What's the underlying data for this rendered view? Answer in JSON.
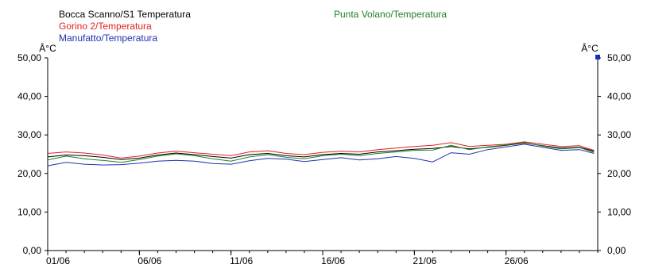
{
  "chart_data": {
    "type": "line",
    "y_unit_left": "Â°C",
    "y_unit_right": "Â°C",
    "ylim": [
      0,
      50
    ],
    "y_ticks": [
      "0,00",
      "10,00",
      "20,00",
      "30,00",
      "40,00",
      "50,00"
    ],
    "y_tick_values": [
      0,
      10,
      20,
      30,
      40,
      50
    ],
    "x_ticks": [
      "01/06",
      "06/06",
      "11/06",
      "16/06",
      "21/06",
      "26/06"
    ],
    "x_tick_days": [
      1,
      6,
      11,
      16,
      21,
      26
    ],
    "xlim_days": [
      1,
      31
    ],
    "grid": false,
    "series": [
      {
        "name": "Bocca Scanno/S1 Temperatura",
        "color": "#000000",
        "x_days": [
          1,
          2,
          3,
          4,
          5,
          6,
          7,
          8,
          9,
          10,
          11,
          12,
          13,
          14,
          15,
          16,
          17,
          18,
          19,
          20,
          21,
          22,
          23,
          24,
          25,
          26,
          27,
          28,
          29,
          30,
          30.8
        ],
        "values": [
          24.3,
          24.8,
          24.6,
          24.2,
          23.6,
          24.0,
          24.8,
          25.3,
          24.9,
          24.4,
          24.0,
          24.9,
          25.2,
          24.6,
          24.3,
          24.9,
          25.2,
          25.0,
          25.6,
          25.9,
          26.3,
          26.5,
          27.0,
          26.4,
          26.8,
          27.3,
          27.9,
          27.2,
          26.6,
          26.8,
          25.8
        ]
      },
      {
        "name": "Gorino 2/Temperatura",
        "color": "#e02020",
        "x_days": [
          1,
          2,
          3,
          4,
          5,
          6,
          7,
          8,
          9,
          10,
          11,
          12,
          13,
          14,
          15,
          16,
          17,
          18,
          19,
          20,
          21,
          22,
          23,
          24,
          25,
          26,
          27,
          28,
          29,
          30,
          30.8
        ],
        "values": [
          25.2,
          25.6,
          25.3,
          24.8,
          24.0,
          24.5,
          25.3,
          25.8,
          25.4,
          25.0,
          24.6,
          25.6,
          25.9,
          25.2,
          24.9,
          25.5,
          25.8,
          25.6,
          26.2,
          26.6,
          27.0,
          27.3,
          28.0,
          27.0,
          27.3,
          27.6,
          28.2,
          27.6,
          27.0,
          27.2,
          26.0
        ]
      },
      {
        "name": "Manufatto/Temperatura",
        "color": "#2030b0",
        "x_days": [
          1,
          2,
          3,
          4,
          5,
          6,
          7,
          8,
          9,
          10,
          11,
          12,
          13,
          14,
          15,
          16,
          17,
          18,
          19,
          20,
          21,
          22,
          23,
          24,
          25,
          26,
          27,
          28,
          29,
          30,
          30.8
        ],
        "values": [
          22.0,
          22.9,
          22.4,
          22.2,
          22.3,
          22.7,
          23.2,
          23.4,
          23.2,
          22.6,
          22.4,
          23.3,
          23.9,
          23.7,
          23.1,
          23.6,
          24.1,
          23.5,
          23.8,
          24.4,
          23.9,
          23.0,
          25.4,
          25.0,
          26.2,
          26.9,
          27.6,
          26.8,
          26.0,
          26.2,
          25.2
        ]
      },
      {
        "name": "Punta Volano/Temperatura",
        "color": "#208020",
        "x_days": [
          1,
          2,
          3,
          4,
          5,
          6,
          7,
          8,
          9,
          10,
          11,
          12,
          13,
          14,
          15,
          16,
          17,
          18,
          19,
          20,
          21,
          22,
          23,
          24,
          25,
          26,
          27,
          28,
          29,
          30,
          30.8
        ],
        "values": [
          23.5,
          24.5,
          23.8,
          23.4,
          22.9,
          23.6,
          24.5,
          25.1,
          24.6,
          23.8,
          23.2,
          24.3,
          24.9,
          24.2,
          23.8,
          24.6,
          25.0,
          24.6,
          25.2,
          25.6,
          26.0,
          26.1,
          27.3,
          26.2,
          26.9,
          27.4,
          28.0,
          27.1,
          26.4,
          26.7,
          25.5
        ]
      }
    ]
  }
}
